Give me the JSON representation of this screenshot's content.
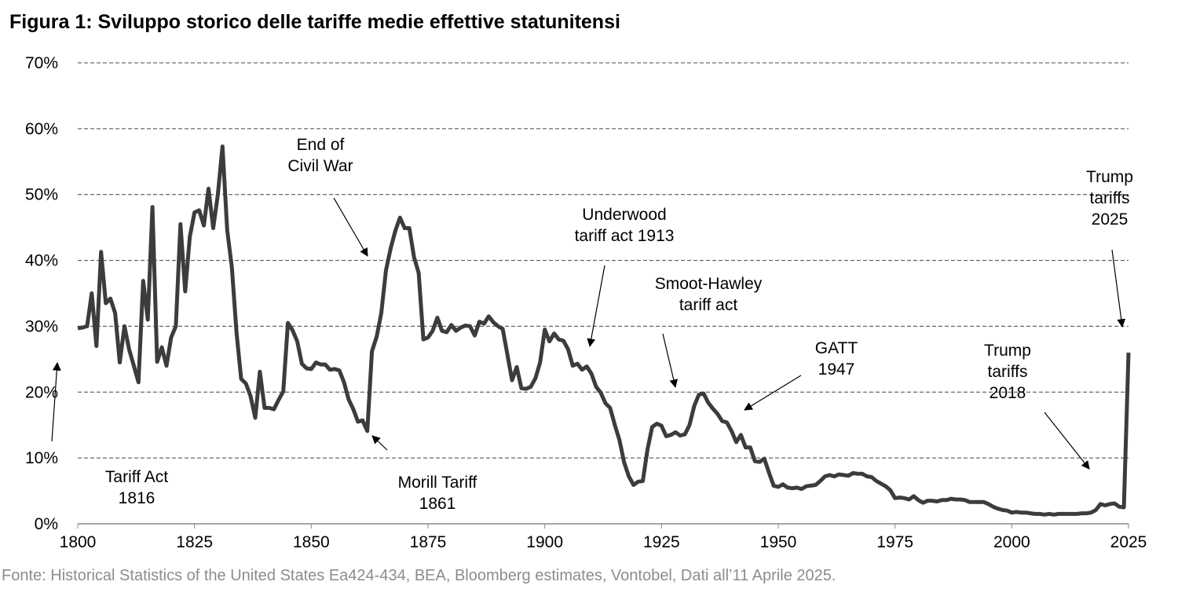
{
  "chart_data": {
    "type": "line",
    "title": "Figura 1: Sviluppo storico delle tariffe medie effettive statunitensi",
    "source": "Fonte: Historical Statistics of the United States Ea424-434, BEA, Bloomberg estimates, Vontobel, Dati all’11 Aprile 2025.",
    "xlabel": "",
    "ylabel": "",
    "xlim": [
      1800,
      2025
    ],
    "ylim": [
      0,
      70
    ],
    "x_ticks": [
      "1800",
      "1825",
      "1850",
      "1875",
      "1900",
      "1925",
      "1950",
      "1975",
      "2000",
      "2025"
    ],
    "y_ticks": [
      "0%",
      "10%",
      "20%",
      "30%",
      "40%",
      "50%",
      "60%",
      "70%"
    ],
    "grid": "horizontal dashed",
    "line_color": "#3c3c3b",
    "x_start": 1800,
    "values": [
      29.7,
      29.8,
      30,
      35,
      27,
      41.3,
      33.5,
      34.2,
      32,
      24.5,
      30,
      26.5,
      24,
      21.5,
      36.9,
      31,
      48.1,
      24.6,
      26.8,
      24,
      28.3,
      30,
      45.5,
      35.3,
      43.6,
      47.3,
      47.6,
      45.3,
      50.9,
      44.9,
      50,
      57.3,
      44.6,
      39,
      29,
      22,
      21.3,
      19.4,
      16.1,
      23.1,
      17.6,
      17.6,
      17.4,
      18.8,
      20.1,
      30.5,
      29.4,
      27.7,
      24.3,
      23.6,
      23.5,
      24.5,
      24.2,
      24.2,
      23.4,
      23.5,
      23.3,
      21.5,
      18.9,
      17.4,
      15.5,
      15.7,
      14.1,
      26.2,
      28.4,
      32,
      38.5,
      41.8,
      44.5,
      46.5,
      44.9,
      44.9,
      40.5,
      38.1,
      28,
      28.3,
      29.3,
      31.3,
      29.3,
      29.1,
      30.2,
      29.3,
      29.8,
      30.1,
      30,
      28.6,
      30.7,
      30.4,
      31.5,
      30.6,
      30,
      29.6,
      25.7,
      21.8,
      23.8,
      20.6,
      20.5,
      20.8,
      22.1,
      24.5,
      29.5,
      27.7,
      28.9,
      28,
      27.8,
      26.5,
      24,
      24.3,
      23.4,
      23.9,
      22.8,
      20.8,
      19.9,
      18.3,
      17.6,
      15,
      12.7,
      9.3,
      7.2,
      5.9,
      6.4,
      6.5,
      11.3,
      14.7,
      15.2,
      14.9,
      13.3,
      13.5,
      13.9,
      13.4,
      13.6,
      15,
      17.9,
      19.6,
      19.8,
      18.4,
      17.5,
      16.7,
      15.6,
      15.4,
      14.1,
      12.4,
      13.5,
      11.6,
      11.6,
      9.5,
      9.4,
      9.9,
      7.8,
      5.8,
      5.6,
      6,
      5.5,
      5.4,
      5.5,
      5.3,
      5.7,
      5.8,
      5.9,
      6.5,
      7.2,
      7.4,
      7.2,
      7.5,
      7.4,
      7.3,
      7.7,
      7.6,
      7.6,
      7.2,
      7.1,
      6.5,
      6.1,
      5.7,
      5.1,
      3.9,
      4,
      3.9,
      3.7,
      4.2,
      3.6,
      3.2,
      3.5,
      3.5,
      3.4,
      3.6,
      3.6,
      3.8,
      3.7,
      3.7,
      3.6,
      3.3,
      3.3,
      3.3,
      3.3,
      3,
      2.6,
      2.3,
      2.1,
      2,
      1.7,
      1.8,
      1.7,
      1.7,
      1.6,
      1.5,
      1.5,
      1.4,
      1.5,
      1.4,
      1.5,
      1.5,
      1.5,
      1.5,
      1.5,
      1.6,
      1.6,
      1.7,
      2.1,
      3.0,
      2.8,
      3.0,
      3.1,
      2.6,
      2.5,
      26.0
    ],
    "annotations": [
      {
        "lines": [
          "End of",
          "Civil War"
        ]
      },
      {
        "lines": [
          "Tariff Act",
          "1816"
        ]
      },
      {
        "lines": [
          "Morill Tariff",
          "1861"
        ]
      },
      {
        "lines": [
          "Underwood",
          "tariff act 1913"
        ]
      },
      {
        "lines": [
          "Smoot-Hawley",
          "tariff act"
        ]
      },
      {
        "lines": [
          "GATT",
          "1947"
        ]
      },
      {
        "lines": [
          "Trump",
          "tariffs",
          "2018"
        ]
      },
      {
        "lines": [
          "Trump",
          "tariffs",
          "2025"
        ]
      }
    ]
  }
}
